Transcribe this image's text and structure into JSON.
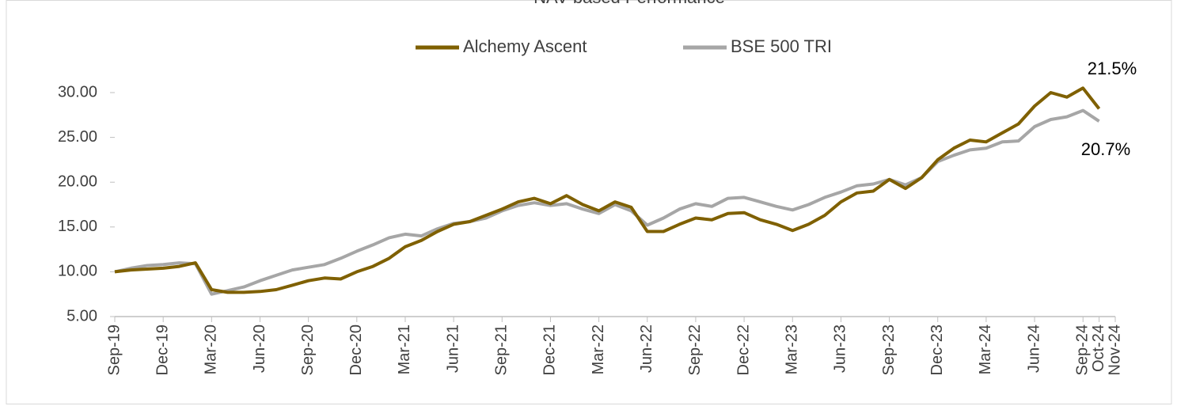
{
  "chart_data": {
    "type": "line",
    "title": "NAV based Performance",
    "x": [
      "2019-09",
      "2019-10",
      "2019-11",
      "2019-12",
      "2020-01",
      "2020-02",
      "2020-03",
      "2020-04",
      "2020-05",
      "2020-06",
      "2020-07",
      "2020-08",
      "2020-09",
      "2020-10",
      "2020-11",
      "2020-12",
      "2021-01",
      "2021-02",
      "2021-03",
      "2021-04",
      "2021-05",
      "2021-06",
      "2021-07",
      "2021-08",
      "2021-09",
      "2021-10",
      "2021-11",
      "2021-12",
      "2022-01",
      "2022-02",
      "2022-03",
      "2022-04",
      "2022-05",
      "2022-06",
      "2022-07",
      "2022-08",
      "2022-09",
      "2022-10",
      "2022-11",
      "2022-12",
      "2023-01",
      "2023-02",
      "2023-03",
      "2023-04",
      "2023-05",
      "2023-06",
      "2023-07",
      "2023-08",
      "2023-09",
      "2023-10",
      "2023-11",
      "2023-12",
      "2024-01",
      "2024-02",
      "2024-03",
      "2024-04",
      "2024-05",
      "2024-06",
      "2024-07",
      "2024-08",
      "2024-09",
      "2024-10"
    ],
    "series": [
      {
        "name": "Alchemy Ascent",
        "color": "#7f6000",
        "values": [
          10.0,
          10.2,
          10.3,
          10.4,
          10.6,
          11.0,
          8.0,
          7.7,
          7.7,
          7.8,
          8.0,
          8.5,
          9.0,
          9.3,
          9.2,
          10.0,
          10.6,
          11.5,
          12.8,
          13.5,
          14.5,
          15.3,
          15.6,
          16.3,
          17.0,
          17.8,
          18.2,
          17.6,
          18.5,
          17.5,
          16.8,
          17.8,
          17.2,
          14.5,
          14.5,
          15.3,
          16.0,
          15.8,
          16.5,
          16.6,
          15.8,
          15.3,
          14.6,
          15.3,
          16.3,
          17.8,
          18.8,
          19.0,
          20.3,
          19.3,
          20.5,
          22.5,
          23.8,
          24.7,
          24.5,
          25.5,
          26.5,
          28.5,
          30.0,
          29.5,
          30.5,
          28.2
        ]
      },
      {
        "name": "BSE 500 TRI",
        "color": "#a6a6a6",
        "values": [
          10.0,
          10.4,
          10.7,
          10.8,
          11.0,
          10.9,
          7.5,
          7.9,
          8.3,
          9.0,
          9.6,
          10.2,
          10.5,
          10.8,
          11.5,
          12.3,
          13.0,
          13.8,
          14.2,
          14.0,
          14.8,
          15.4,
          15.6,
          16.0,
          16.8,
          17.4,
          17.7,
          17.4,
          17.6,
          17.0,
          16.5,
          17.5,
          16.8,
          15.2,
          16.0,
          17.0,
          17.6,
          17.3,
          18.2,
          18.3,
          17.8,
          17.3,
          16.9,
          17.5,
          18.3,
          18.9,
          19.6,
          19.8,
          20.3,
          19.7,
          20.5,
          22.3,
          23.0,
          23.6,
          23.8,
          24.5,
          24.6,
          26.2,
          27.0,
          27.3,
          28.0,
          26.8
        ]
      }
    ],
    "xlim": [
      "2019-09",
      "2024-11"
    ],
    "xticks": [
      {
        "value": "2019-09",
        "label": "Sep-19"
      },
      {
        "value": "2019-12",
        "label": "Dec-19"
      },
      {
        "value": "2020-03",
        "label": "Mar-20"
      },
      {
        "value": "2020-06",
        "label": "Jun-20"
      },
      {
        "value": "2020-09",
        "label": "Sep-20"
      },
      {
        "value": "2020-12",
        "label": "Dec-20"
      },
      {
        "value": "2021-03",
        "label": "Mar-21"
      },
      {
        "value": "2021-06",
        "label": "Jun-21"
      },
      {
        "value": "2021-09",
        "label": "Sep-21"
      },
      {
        "value": "2021-12",
        "label": "Dec-21"
      },
      {
        "value": "2022-03",
        "label": "Mar-22"
      },
      {
        "value": "2022-06",
        "label": "Jun-22"
      },
      {
        "value": "2022-09",
        "label": "Sep-22"
      },
      {
        "value": "2022-12",
        "label": "Dec-22"
      },
      {
        "value": "2023-03",
        "label": "Mar-23"
      },
      {
        "value": "2023-06",
        "label": "Jun-23"
      },
      {
        "value": "2023-09",
        "label": "Sep-23"
      },
      {
        "value": "2023-12",
        "label": "Dec-23"
      },
      {
        "value": "2024-03",
        "label": "Mar-24"
      },
      {
        "value": "2024-06",
        "label": "Jun-24"
      },
      {
        "value": "2024-09",
        "label": "Sep-24"
      },
      {
        "value": "2024-10",
        "label": "Oct-24"
      },
      {
        "value": "2024-11",
        "label": "Nov-24"
      }
    ],
    "ylim": [
      5,
      30
    ],
    "yticks": [
      {
        "value": 5,
        "label": "5.00"
      },
      {
        "value": 10,
        "label": "10.00"
      },
      {
        "value": 15,
        "label": "15.00"
      },
      {
        "value": 20,
        "label": "20.00"
      },
      {
        "value": 25,
        "label": "25.00"
      },
      {
        "value": 30,
        "label": "30.00"
      }
    ],
    "annotations": [
      "21.5%",
      "20.7%"
    ],
    "legend": "top"
  }
}
